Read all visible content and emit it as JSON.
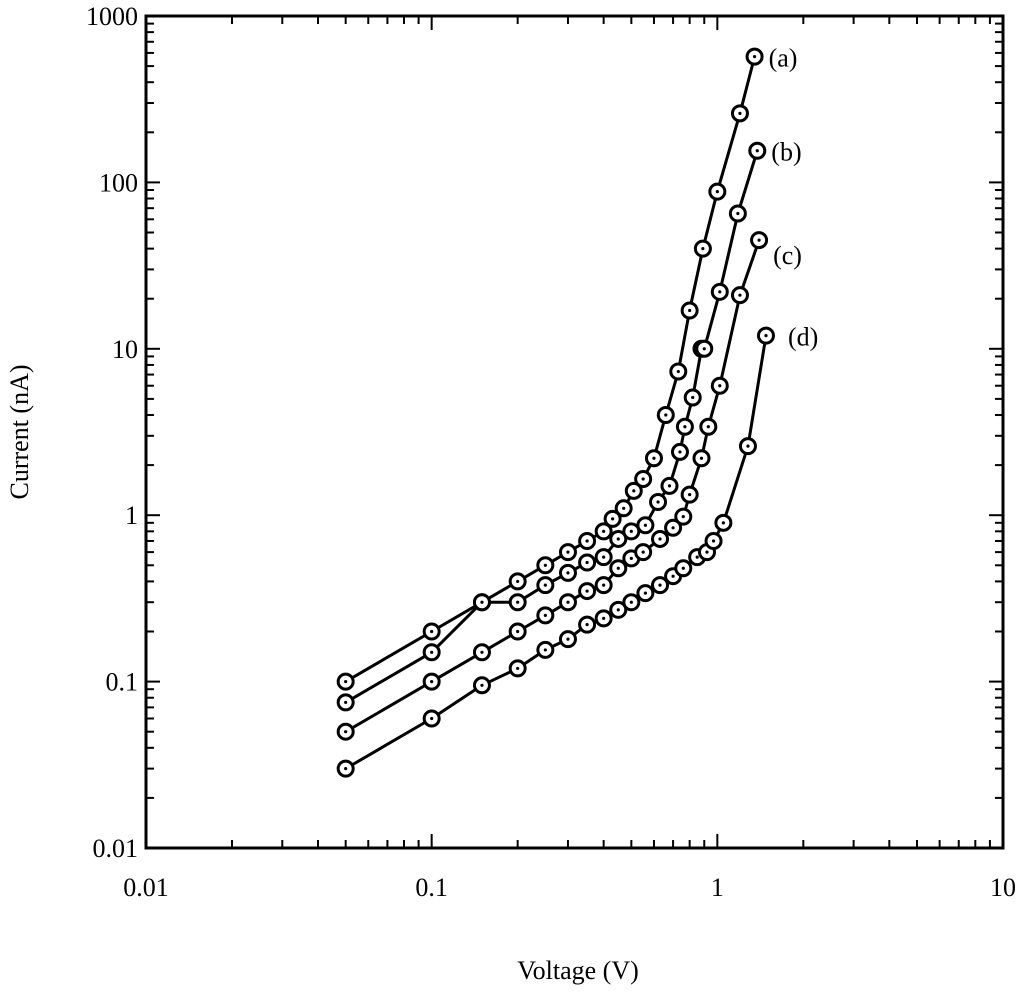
{
  "chart_data": {
    "type": "scatter",
    "xscale": "log",
    "yscale": "log",
    "xlabel": "Voltage (V)",
    "ylabel": "Current (nA)",
    "xlim": [
      0.01,
      10
    ],
    "ylim": [
      0.01,
      1000
    ],
    "xticks": [
      0.01,
      0.1,
      1,
      10
    ],
    "xtick_labels": [
      "0.01",
      "0.1",
      "1",
      "10"
    ],
    "yticks": [
      0.01,
      0.1,
      1,
      10,
      100,
      1000
    ],
    "ytick_labels": [
      "0.01",
      "0.1",
      "1",
      "10",
      "100",
      "1000"
    ],
    "grid": false,
    "line_color": "#000000",
    "marker": "open-circle-with-dot",
    "series": [
      {
        "name": "(a)",
        "x": [
          0.05,
          0.1,
          0.15,
          0.2,
          0.25,
          0.3,
          0.35,
          0.4,
          0.43,
          0.47,
          0.51,
          0.55,
          0.6,
          0.66,
          0.73,
          0.8,
          0.89,
          1.0,
          1.2,
          1.35
        ],
        "y": [
          0.1,
          0.2,
          0.3,
          0.4,
          0.5,
          0.6,
          0.7,
          0.8,
          0.95,
          1.1,
          1.4,
          1.65,
          2.2,
          4.0,
          7.3,
          17,
          40,
          88,
          260,
          570
        ]
      },
      {
        "name": "(b)",
        "x": [
          0.05,
          0.1,
          0.15,
          0.2,
          0.25,
          0.3,
          0.35,
          0.4,
          0.45,
          0.5,
          0.56,
          0.62,
          0.68,
          0.74,
          0.77,
          0.82,
          0.88,
          0.9,
          1.02,
          1.18,
          1.38
        ],
        "y": [
          0.075,
          0.15,
          0.3,
          0.3,
          0.38,
          0.45,
          0.52,
          0.56,
          0.72,
          0.8,
          0.87,
          1.2,
          1.5,
          2.4,
          3.4,
          5.1,
          10,
          10,
          22,
          65,
          155
        ]
      },
      {
        "name": "(c)",
        "x": [
          0.05,
          0.1,
          0.15,
          0.2,
          0.25,
          0.3,
          0.35,
          0.4,
          0.45,
          0.5,
          0.55,
          0.63,
          0.7,
          0.76,
          0.8,
          0.88,
          0.93,
          1.02,
          1.2,
          1.4
        ],
        "y": [
          0.05,
          0.1,
          0.15,
          0.2,
          0.25,
          0.3,
          0.35,
          0.38,
          0.48,
          0.55,
          0.6,
          0.72,
          0.84,
          0.98,
          1.33,
          2.2,
          3.4,
          6,
          21,
          45
        ]
      },
      {
        "name": "(d)",
        "x": [
          0.05,
          0.1,
          0.15,
          0.2,
          0.25,
          0.3,
          0.35,
          0.4,
          0.45,
          0.5,
          0.56,
          0.63,
          0.7,
          0.76,
          0.85,
          0.92,
          0.97,
          1.05,
          1.28,
          1.48
        ],
        "y": [
          0.03,
          0.06,
          0.095,
          0.12,
          0.155,
          0.18,
          0.22,
          0.24,
          0.27,
          0.3,
          0.34,
          0.38,
          0.43,
          0.48,
          0.56,
          0.6,
          0.7,
          0.9,
          2.6,
          12
        ]
      }
    ]
  }
}
